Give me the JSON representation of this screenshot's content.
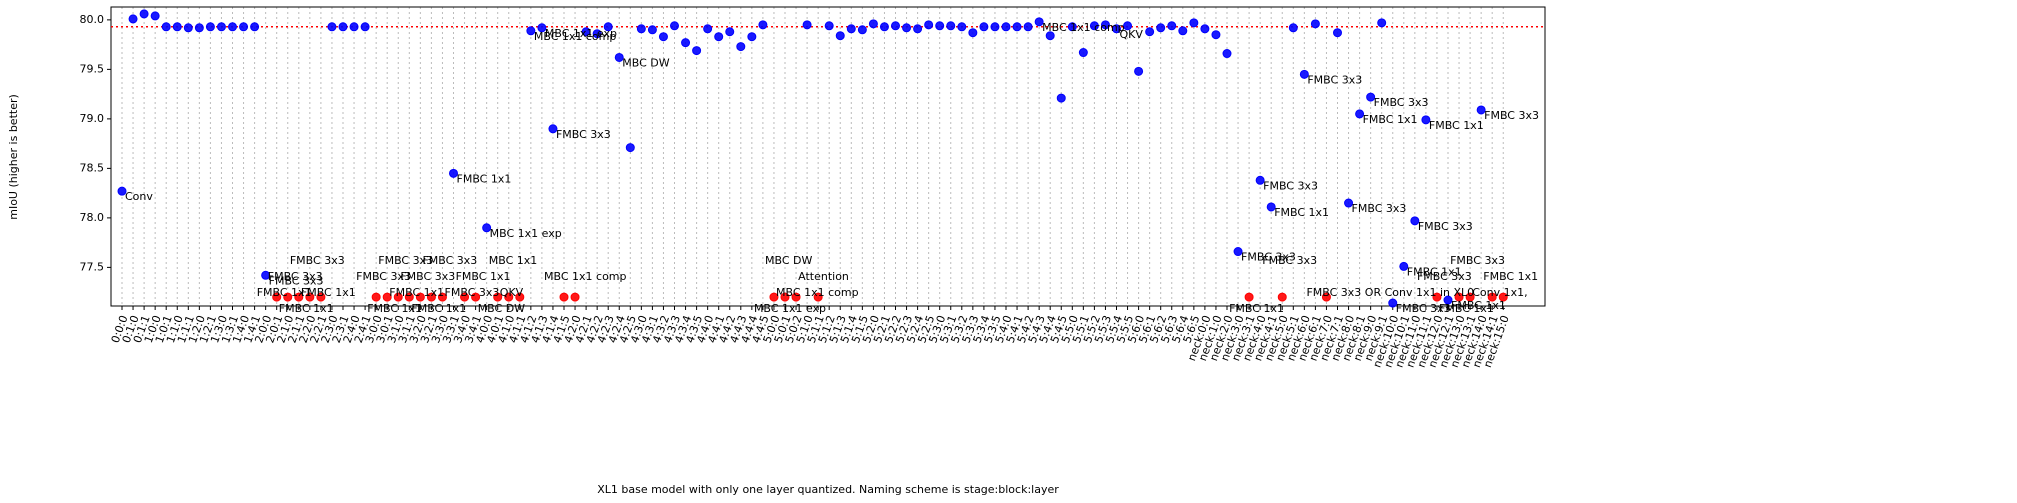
{
  "chart_data": {
    "type": "scatter",
    "xlabel": "XL1 base model with only one layer quantized. Naming scheme is stage:block:layer",
    "ylabel": "mIoU (higher is better)",
    "categories": [
      "0:0:0",
      "0:1:0",
      "0:1:1",
      "1:0:0",
      "1:0:1",
      "1:1:0",
      "1:1:1",
      "1:2:0",
      "1:2:1",
      "1:3:0",
      "1:3:1",
      "1:4:0",
      "1:4:1",
      "2:0:0",
      "2:0:1",
      "2:1:0",
      "2:1:1",
      "2:2:0",
      "2:2:1",
      "2:3:0",
      "2:3:1",
      "2:4:0",
      "2:4:1",
      "3:0:0",
      "3:0:1",
      "3:1:0",
      "3:1:1",
      "3:2:0",
      "3:2:1",
      "3:3:0",
      "3:3:1",
      "3:4:0",
      "3:4:1",
      "4:0:0",
      "4:0:1",
      "4:1:0",
      "4:1:1",
      "4:1:2",
      "4:1:3",
      "4:1:4",
      "4:1:5",
      "4:2:0",
      "4:2:1",
      "4:2:2",
      "4:2:3",
      "4:2:4",
      "4:2:5",
      "4:3:0",
      "4:3:1",
      "4:3:2",
      "4:3:3",
      "4:3:4",
      "4:3:5",
      "4:4:0",
      "4:4:1",
      "4:4:2",
      "4:4:3",
      "4:4:4",
      "4:4:5",
      "5:0:0",
      "5:0:1",
      "5:0:2",
      "5:1:0",
      "5:1:1",
      "5:1:2",
      "5:1:3",
      "5:1:4",
      "5:1:5",
      "5:2:0",
      "5:2:1",
      "5:2:2",
      "5:2:3",
      "5:2:4",
      "5:2:5",
      "5:3:0",
      "5:3:1",
      "5:3:2",
      "5:3:3",
      "5:3:4",
      "5:3:5",
      "5:4:0",
      "5:4:1",
      "5:4:2",
      "5:4:3",
      "5:4:4",
      "5:4:5",
      "5:5:0",
      "5:5:1",
      "5:5:2",
      "5:5:3",
      "5:5:4",
      "5:5:5",
      "5:6:0",
      "5:6:1",
      "5:6:2",
      "5:6:3",
      "5:6:4",
      "5:6:5",
      "neck:0:0",
      "neck:1:0",
      "neck:2:0",
      "neck:3:0",
      "neck:3:1",
      "neck:4:0",
      "neck:4:1",
      "neck:5:0",
      "neck:5:1",
      "neck:6:0",
      "neck:6:1",
      "neck:7:0",
      "neck:7:1",
      "neck:8:0",
      "neck:8:1",
      "neck:9:0",
      "neck:9:1",
      "neck:10:0",
      "neck:10:1",
      "neck:11:0",
      "neck:11:1",
      "neck:12:0",
      "neck:12:1",
      "neck:13:0",
      "neck:13:1",
      "neck:14:0",
      "neck:14:1",
      "neck:15:0"
    ],
    "series": [
      {
        "color": "blue",
        "values": [
          78.27,
          80.01,
          80.06,
          80.04,
          79.93,
          79.93,
          79.92,
          79.92,
          79.93,
          79.93,
          79.93,
          79.93,
          79.93,
          77.42,
          null,
          null,
          null,
          null,
          null,
          79.93,
          79.93,
          79.93,
          79.93,
          null,
          null,
          null,
          null,
          null,
          null,
          null,
          78.45,
          null,
          null,
          77.9,
          null,
          null,
          null,
          79.89,
          79.92,
          78.9,
          null,
          null,
          79.88,
          79.86,
          79.93,
          79.62,
          78.71,
          79.91,
          79.9,
          79.83,
          79.94,
          79.77,
          79.69,
          79.91,
          79.83,
          79.88,
          79.73,
          79.83,
          79.95,
          null,
          null,
          null,
          79.95,
          null,
          79.94,
          79.84,
          79.91,
          79.9,
          79.96,
          79.93,
          79.94,
          79.92,
          79.91,
          79.95,
          79.94,
          79.94,
          79.93,
          79.87,
          79.93,
          79.93,
          79.93,
          79.93,
          79.93,
          79.98,
          79.84,
          79.21,
          79.93,
          79.67,
          79.94,
          79.95,
          79.91,
          79.94,
          79.48,
          79.88,
          79.92,
          79.94,
          79.89,
          79.97,
          79.91,
          79.85,
          79.66,
          77.66,
          null,
          78.38,
          78.11,
          null,
          79.92,
          79.45,
          79.96,
          null,
          79.87,
          78.15,
          79.05,
          79.22,
          79.97,
          77.14,
          77.51,
          77.97,
          78.99,
          null,
          77.17,
          null,
          null,
          79.09,
          null,
          null
        ]
      },
      {
        "color": "red",
        "values": [
          null,
          null,
          null,
          null,
          null,
          null,
          null,
          null,
          null,
          null,
          null,
          null,
          null,
          null,
          77.2,
          77.2,
          77.2,
          77.2,
          77.2,
          null,
          null,
          null,
          null,
          77.2,
          77.2,
          77.2,
          77.2,
          77.2,
          77.2,
          77.2,
          null,
          77.2,
          77.2,
          null,
          77.2,
          77.2,
          77.2,
          null,
          null,
          null,
          77.2,
          77.2,
          null,
          null,
          null,
          null,
          null,
          null,
          null,
          null,
          null,
          null,
          null,
          null,
          null,
          null,
          null,
          null,
          null,
          77.2,
          77.2,
          77.2,
          null,
          77.2,
          null,
          null,
          null,
          null,
          null,
          null,
          null,
          null,
          null,
          null,
          null,
          null,
          null,
          null,
          null,
          null,
          null,
          null,
          null,
          null,
          null,
          null,
          null,
          null,
          null,
          null,
          null,
          null,
          null,
          null,
          null,
          null,
          null,
          null,
          null,
          null,
          null,
          null,
          77.2,
          null,
          null,
          77.2,
          null,
          null,
          null,
          77.2,
          null,
          null,
          null,
          null,
          null,
          null,
          null,
          null,
          null,
          77.2,
          null,
          77.2,
          77.2,
          null,
          77.2,
          77.2
        ]
      }
    ],
    "hline": {
      "value": 79.93,
      "color": "red"
    },
    "annotations": [
      {
        "text": "Conv",
        "x": "0:0:0"
      },
      {
        "text": "FMBC 3x3",
        "x": "2:0:0"
      },
      {
        "text": "FMBC 1x1",
        "x": "2:0:1"
      },
      {
        "text": "FMBC 3x3",
        "x": "2:1:0"
      },
      {
        "text": "FMBC 1x1",
        "x": "2:1:1"
      },
      {
        "text": "FMBC 3x3",
        "x": "2:2:0"
      },
      {
        "text": "FMBC 1x1",
        "x": "2:2:1"
      },
      {
        "text": "FMBC 3x3",
        "x": "3:0:0"
      },
      {
        "text": "FMBC 1x1",
        "x": "3:0:1"
      },
      {
        "text": "FMBC 3x3",
        "x": "3:1:0"
      },
      {
        "text": "FMBC 1x1",
        "x": "3:1:1"
      },
      {
        "text": "FMBC 3x3",
        "x": "3:2:0"
      },
      {
        "text": "FMBC 1x1",
        "x": "3:2:1"
      },
      {
        "text": "FMBC 3x3",
        "x": "3:3:0"
      },
      {
        "text": "FMBC 1x1",
        "x": "3:3:1"
      },
      {
        "text": "FMBC 3x3",
        "x": "3:4:0"
      },
      {
        "text": "FMBC 1x1",
        "x": "3:4:1"
      },
      {
        "text": "MBC 1x1 exp",
        "x": "4:0:0"
      },
      {
        "text": "MBC DW",
        "x": "4:0:1"
      },
      {
        "text": "MBC 1x1",
        "x": "4:1:0"
      },
      {
        "text": "QKV",
        "x": "4:1:1"
      },
      {
        "text": "MBC 1x1 comp",
        "x": "4:1:2"
      },
      {
        "text": "MBC 1x1 exp",
        "x": "4:1:3"
      },
      {
        "text": "FMBC 3x3",
        "x": "4:1:4"
      },
      {
        "text": "MBC 1x1 comp",
        "x": "4:1:5"
      },
      {
        "text": "MBC DW",
        "x": "4:2:4"
      },
      {
        "text": "MBC 1x1 exp",
        "x": "5:0:0"
      },
      {
        "text": "MBC DW",
        "x": "5:0:1"
      },
      {
        "text": "MBC 1x1 comp",
        "x": "5:0:2"
      },
      {
        "text": "Attention",
        "x": "5:1:1"
      },
      {
        "text": "MBC 1x1 comp",
        "x": "5:4:3"
      },
      {
        "text": "QKV",
        "x": "5:5:4"
      },
      {
        "text": "FMBC 3x3",
        "x": "neck:3:0"
      },
      {
        "text": "FMBC 1x1",
        "x": "neck:3:1"
      },
      {
        "text": "FMBC 3x3",
        "x": "neck:4:0"
      },
      {
        "text": "FMBC 1x1",
        "x": "neck:4:1"
      },
      {
        "text": "FMBC 3x3",
        "x": "neck:5:0"
      },
      {
        "text": "FMBC 3x3",
        "x": "neck:6:0"
      },
      {
        "text": "FMBC 3x3 OR Conv 1x1 in XL0",
        "x": "neck:7:0"
      },
      {
        "text": "FMBC 3x3",
        "x": "neck:8:0"
      },
      {
        "text": "FMBC 1x1",
        "x": "neck:8:1"
      },
      {
        "text": "FMBC 3x3",
        "x": "neck:9:0"
      },
      {
        "text": "FMBC 3x3",
        "x": "neck:10:0"
      },
      {
        "text": "FMBC 1x1",
        "x": "neck:10:1"
      },
      {
        "text": "FMBC 3x3",
        "x": "neck:11:0"
      },
      {
        "text": "FMBC 1x1",
        "x": "neck:11:1"
      },
      {
        "text": "FMBC 3x3",
        "x": "neck:12:0"
      },
      {
        "text": "FMBC 1x1",
        "x": "neck:12:1"
      },
      {
        "text": "FMBC 1x1",
        "x": "neck:13:0"
      },
      {
        "text": "FMBC 3x3",
        "x": "neck:13:1"
      },
      {
        "text": "FMBC 3x3",
        "x": "neck:14:0"
      },
      {
        "text": "Conv 1x1,",
        "x": "neck:14:1"
      },
      {
        "text": "FMBC 1x1",
        "x": "neck:15:0"
      }
    ],
    "ylim": [
      77.11,
      80.13
    ],
    "yticks": [
      77.5,
      {
        "value": 78,
        "label": "78.0"
      },
      78.5,
      {
        "value": 79,
        "label": "79.0"
      },
      79.5,
      {
        "value": 80,
        "label": "80.0"
      }
    ],
    "grid": true
  }
}
